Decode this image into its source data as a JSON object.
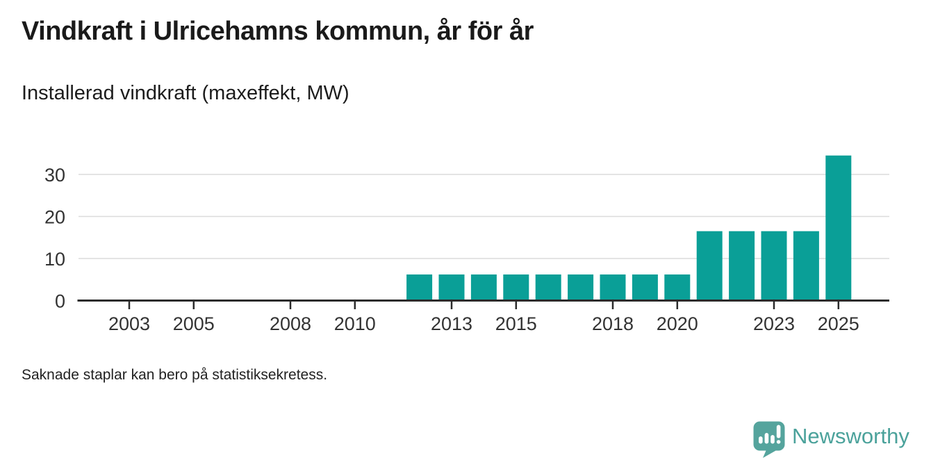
{
  "title": "Vindkraft i Ulricehamns kommun, år för år",
  "subtitle": "Installerad vindkraft (maxeffekt, MW)",
  "footnote": "Saknade staplar kan bero på statistiksekretess.",
  "branding": {
    "name": "Newsworthy",
    "icon": "speech-bubble-bar-chart-icon",
    "icon_color": "#55a49d",
    "text_color": "#4ba29b"
  },
  "colors": {
    "bar": "#0a9f97",
    "axis": "#2b2b2b",
    "grid": "#dcdcdc",
    "tick_label": "#333333"
  },
  "chart_data": {
    "type": "bar",
    "title": "Vindkraft i Ulricehamns kommun, år för år",
    "subtitle": "Installerad vindkraft (maxeffekt, MW)",
    "unit": "MW",
    "x": [
      2012,
      2013,
      2014,
      2015,
      2016,
      2017,
      2018,
      2019,
      2020,
      2021,
      2022,
      2023,
      2024,
      2025
    ],
    "values": [
      6.2,
      6.2,
      6.2,
      6.2,
      6.2,
      6.2,
      6.2,
      6.2,
      6.2,
      16.5,
      16.5,
      16.5,
      16.5,
      34.5
    ],
    "x_axis": {
      "range": [
        2001.4,
        2026.6
      ],
      "ticks": [
        2003,
        2005,
        2008,
        2010,
        2013,
        2015,
        2018,
        2020,
        2023,
        2025
      ]
    },
    "y_axis": {
      "range": [
        0,
        35
      ],
      "ticks": [
        0,
        10,
        20,
        30
      ]
    },
    "grid": true,
    "legend": false,
    "missing_bars_note": "Saknade staplar kan bero på statistiksekretess."
  }
}
